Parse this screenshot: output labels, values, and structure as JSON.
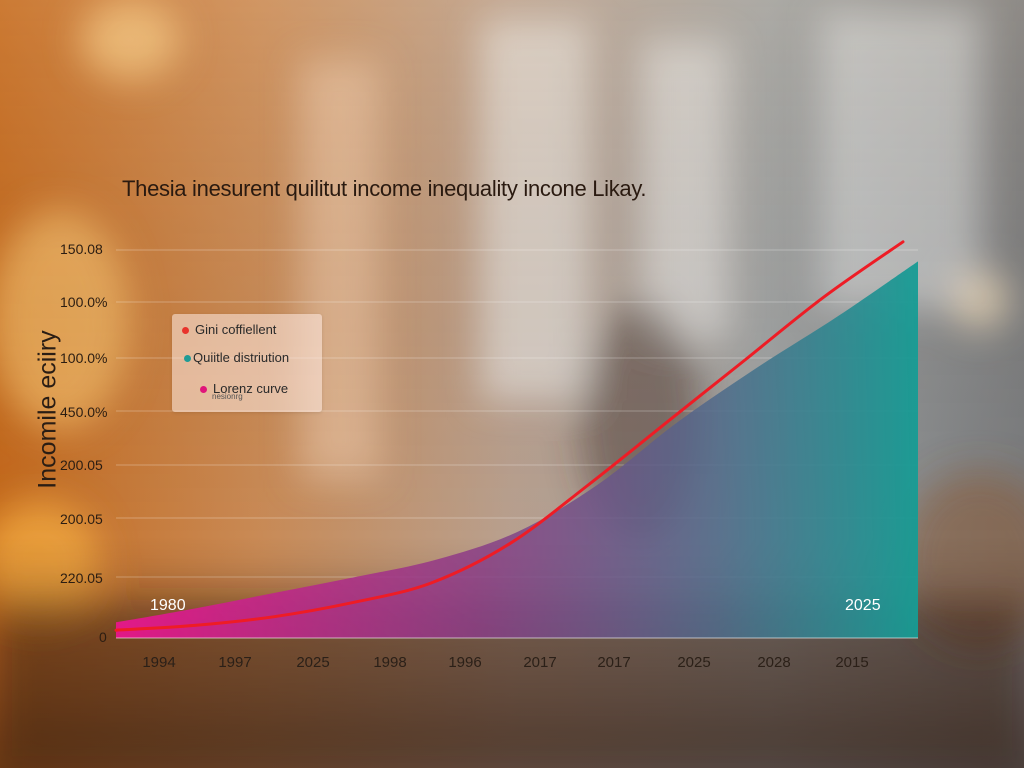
{
  "chart_data": {
    "type": "area",
    "title": "Thesia inesurent quilitut income inequality incone Likay.",
    "ylabel": "Incomile eciiry",
    "y_tick_labels": [
      "150.08",
      "100.0%",
      "100.0%",
      "450.0%",
      "200.05",
      "200.05",
      "220.05",
      "0"
    ],
    "x_tick_labels": [
      "1994",
      "1997",
      "2025",
      "1998",
      "1996",
      "2017",
      "2017",
      "2025",
      "2028",
      "2015"
    ],
    "inline_labels": {
      "start": "1980",
      "end": "2025"
    },
    "legend": {
      "placement": "upper-left",
      "items": [
        {
          "label": "Gini coffiellent",
          "color": "#e8332b"
        },
        {
          "label": "Quiitle distriution",
          "color": "#1f9b95"
        },
        {
          "label": "Lorenz curve",
          "color": "#e0157a"
        }
      ],
      "subtext": "nesionrg"
    },
    "series": [
      {
        "name": "Gini coffiellent",
        "type": "line",
        "color": "#e8202a",
        "values": [
          0.1,
          0.16,
          0.27,
          0.45,
          0.7,
          1.2,
          1.95,
          2.75,
          3.55,
          4.35,
          5.05
        ]
      },
      {
        "name": "Lorenz curve",
        "type": "area",
        "values": [
          0.2,
          0.38,
          0.58,
          0.78,
          1.0,
          1.35,
          1.95,
          2.75,
          3.45,
          4.1,
          4.8
        ]
      }
    ],
    "ylim": [
      0,
      5.2
    ],
    "grid": true,
    "colors": {
      "area_start": "#e8168c",
      "area_mid": "#7a4a86",
      "area_end": "#169c94",
      "line": "#ee1c25"
    }
  }
}
